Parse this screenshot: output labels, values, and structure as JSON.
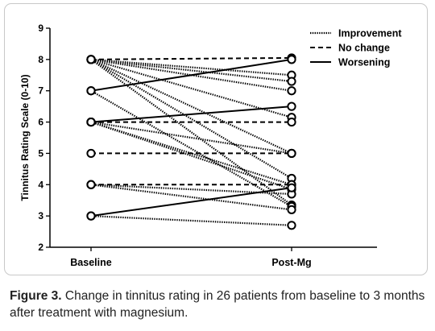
{
  "figure_label": "Figure 3.",
  "caption_text": "Change in tinnitus rating in 26 patients from baseline to 3 months after treatment with magnesium.",
  "chart_data": {
    "type": "line",
    "ylabel": "Tinnitus Rating Scale (0-10)",
    "xlabel": "",
    "categories": [
      "Baseline",
      "Post-Mg"
    ],
    "ylim": [
      2,
      9
    ],
    "yticks": [
      2,
      3,
      4,
      5,
      6,
      7,
      8,
      9
    ],
    "legend": {
      "placement": "top-right",
      "entries": [
        {
          "label": "Improvement",
          "style": "dotted"
        },
        {
          "label": "No change",
          "style": "dashed"
        },
        {
          "label": "Worsening",
          "style": "solid"
        }
      ]
    },
    "series": [
      {
        "group": "Improvement",
        "values": [
          8,
          7.5
        ]
      },
      {
        "group": "Improvement",
        "values": [
          8,
          7.3
        ]
      },
      {
        "group": "Improvement",
        "values": [
          8,
          7.0
        ]
      },
      {
        "group": "Improvement",
        "values": [
          8,
          6.15
        ]
      },
      {
        "group": "Improvement",
        "values": [
          8,
          5.0
        ]
      },
      {
        "group": "Improvement",
        "values": [
          8,
          4.2
        ]
      },
      {
        "group": "Improvement",
        "values": [
          8,
          3.35
        ]
      },
      {
        "group": "Improvement",
        "values": [
          7,
          3.3
        ]
      },
      {
        "group": "Improvement",
        "values": [
          6,
          4.0
        ]
      },
      {
        "group": "Improvement",
        "values": [
          6,
          3.85
        ]
      },
      {
        "group": "Improvement",
        "values": [
          6,
          5.0
        ]
      },
      {
        "group": "Improvement",
        "values": [
          4,
          3.7
        ]
      },
      {
        "group": "Improvement",
        "values": [
          4,
          3.2
        ]
      },
      {
        "group": "Improvement",
        "values": [
          3,
          2.7
        ]
      },
      {
        "group": "No change",
        "values": [
          8,
          8.05
        ]
      },
      {
        "group": "No change",
        "values": [
          6,
          6.0
        ]
      },
      {
        "group": "No change",
        "values": [
          5,
          5.0
        ]
      },
      {
        "group": "No change",
        "values": [
          4,
          4.0
        ]
      },
      {
        "group": "Worsening",
        "values": [
          7,
          8.0
        ]
      },
      {
        "group": "Worsening",
        "values": [
          6,
          6.5
        ]
      },
      {
        "group": "Worsening",
        "values": [
          3,
          3.9
        ]
      }
    ]
  }
}
